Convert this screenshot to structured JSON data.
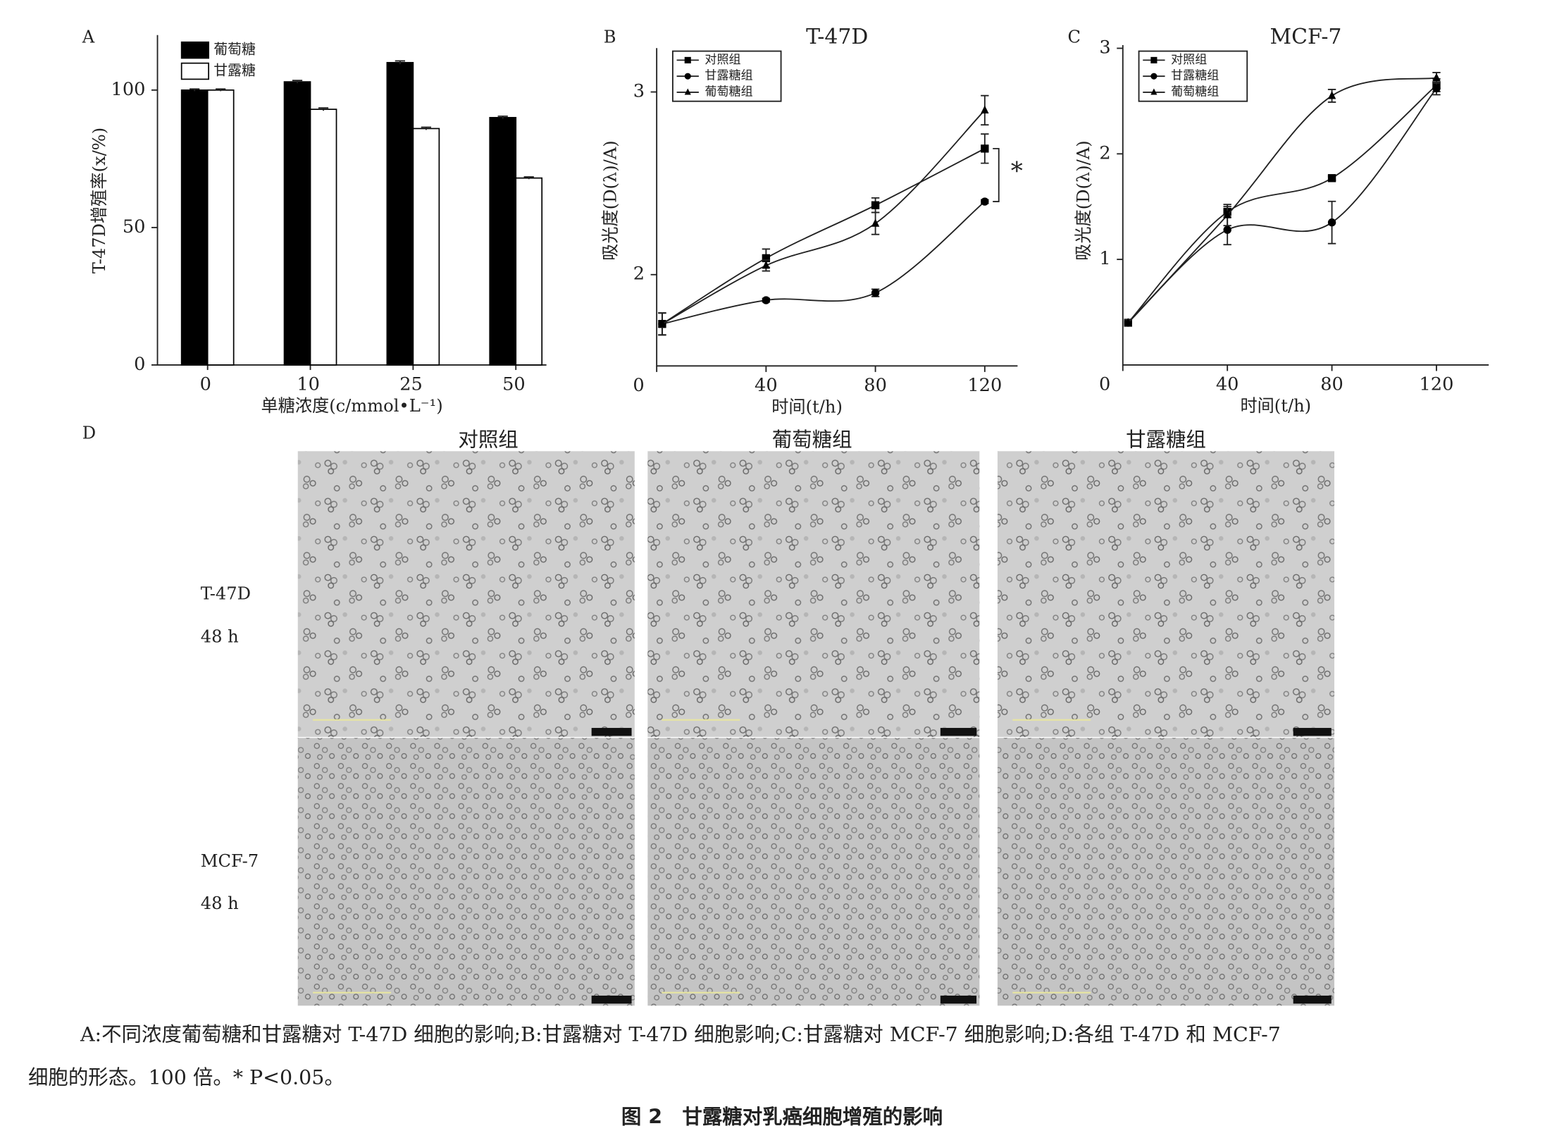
{
  "chart_data": [
    {
      "label": "A",
      "type": "bar",
      "ylabel": "T-47D增殖率(x/%)",
      "xlabel": "单糖浓度(c/mmol•L⁻¹)",
      "categories": [
        "0",
        "10",
        "25",
        "50"
      ],
      "series": [
        {
          "name": "葡萄糖",
          "color": "#000000",
          "values": [
            100,
            103,
            110,
            90
          ],
          "errors": [
            0.4,
            0.5,
            0.6,
            0.5
          ]
        },
        {
          "name": "甘露糖",
          "color": "#ffffff",
          "values": [
            100,
            93,
            86,
            68
          ],
          "errors": [
            0.4,
            0.5,
            0.5,
            0.4
          ]
        }
      ],
      "ylim": [
        0,
        120
      ],
      "yticks": [
        0,
        50,
        100
      ],
      "legend": "upper left"
    },
    {
      "label": "B",
      "type": "line",
      "title": "T-47D",
      "ylabel": "吸光度(D(λ)/A)",
      "xlabel": "时间(t/h)",
      "x": [
        2,
        40,
        80,
        120
      ],
      "series": [
        {
          "name": "对照组",
          "color": "#000000",
          "marker": "square",
          "values": [
            1.73,
            2.09,
            2.38,
            2.69
          ],
          "errors": [
            0.06,
            0.05,
            0.04,
            0.08
          ]
        },
        {
          "name": "甘露糖组",
          "color": "#000000",
          "marker": "circle",
          "values": [
            1.73,
            1.86,
            1.9,
            2.4
          ],
          "errors": [
            0.06,
            0.01,
            0.02,
            0.01
          ]
        },
        {
          "name": "葡萄糖组",
          "color": "#000000",
          "marker": "triangle",
          "values": [
            1.73,
            2.05,
            2.28,
            2.9
          ],
          "errors": [
            0.06,
            0.03,
            0.06,
            0.08
          ]
        }
      ],
      "xlim": [
        0,
        132
      ],
      "xticks": [
        0,
        40,
        80,
        120
      ],
      "ylim": [
        1.5,
        3.24
      ],
      "yticks": [
        2,
        3
      ],
      "annotation": "*",
      "legend": "upper left"
    },
    {
      "label": "C",
      "type": "line",
      "title": "MCF-7",
      "ylabel": "吸光度(D(λ)/A)",
      "xlabel": "时间(t/h)",
      "x": [
        2,
        40,
        80,
        120
      ],
      "series": [
        {
          "name": "对照组",
          "color": "#000000",
          "marker": "square",
          "values": [
            0.4,
            1.45,
            1.77,
            2.65
          ],
          "errors": [
            0.03,
            0.05,
            0.02,
            0.06
          ]
        },
        {
          "name": "甘露糖组",
          "color": "#000000",
          "marker": "circle",
          "values": [
            0.4,
            1.28,
            1.35,
            2.62
          ],
          "errors": [
            0.03,
            0.14,
            0.2,
            0.06
          ]
        },
        {
          "name": "葡萄糖组",
          "color": "#000000",
          "marker": "triangle",
          "values": [
            0.4,
            1.42,
            2.55,
            2.72
          ],
          "errors": [
            0.03,
            0.1,
            0.06,
            0.05
          ]
        }
      ],
      "xlim": [
        0,
        140
      ],
      "xticks": [
        0,
        40,
        80,
        120
      ],
      "ylim": [
        0,
        3.03
      ],
      "yticks": [
        1,
        2,
        3
      ],
      "legend": "upper left"
    }
  ],
  "micrographs": {
    "label": "D",
    "columns": [
      "对照组",
      "葡萄糖组",
      "甘露糖组"
    ],
    "rows": [
      {
        "label": "T-47D",
        "time": "48 h"
      },
      {
        "label": "MCF-7",
        "time": "48 h"
      }
    ]
  },
  "caption": [
    "A:不同浓度葡萄糖和甘露糖对 T-47D 细胞的影响;B:甘露糖对 T-47D 细胞影响;C:甘露糖对 MCF-7 细胞影响;D:各组 T-47D 和 MCF-7",
    "细胞的形态。100 倍。* P<0.05。"
  ],
  "figure_title": "图 2　甘露糖对乳癌细胞增殖的影响"
}
